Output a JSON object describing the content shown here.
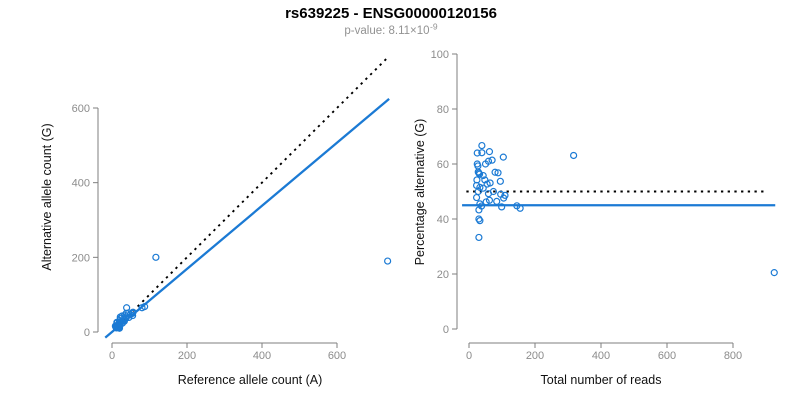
{
  "header": {
    "title": "rs639225 - ENSG00000120156",
    "subtitle_prefix": "p-value: 8.11×10",
    "subtitle_exponent": "-9"
  },
  "colors": {
    "point_blue": "#1b7ad4",
    "regression_blue": "#1b7ad4",
    "identity_black": "#000000",
    "axis_gray": "#7f7f7f",
    "tick_label_gray": "#8c8c8c"
  },
  "chart_data": [
    {
      "type": "scatter",
      "name": "allele-counts-plot",
      "xlabel": "Reference allele count (A)",
      "ylabel": "Alternative allele count (G)",
      "xticks": [
        0,
        200,
        400,
        600
      ],
      "yticks": [
        0,
        200,
        400,
        600
      ],
      "xlim": [
        -37,
        741
      ],
      "ylim": [
        -27,
        737
      ],
      "points": [
        [
          13,
          26
        ],
        [
          14,
          25
        ],
        [
          9,
          16
        ],
        [
          22,
          40
        ],
        [
          27,
          43
        ],
        [
          10,
          15
        ],
        [
          39,
          65
        ],
        [
          23,
          36
        ],
        [
          20,
          30
        ],
        [
          11,
          16
        ],
        [
          13,
          17
        ],
        [
          12,
          16
        ],
        [
          14,
          18
        ],
        [
          11,
          13
        ],
        [
          34,
          45
        ],
        [
          38,
          50
        ],
        [
          19,
          24
        ],
        [
          22,
          26
        ],
        [
          26,
          29
        ],
        [
          30,
          34
        ],
        [
          44,
          51
        ],
        [
          11,
          12
        ],
        [
          16,
          17
        ],
        [
          21,
          22
        ],
        [
          37,
          37
        ],
        [
          14,
          14
        ],
        [
          30,
          29
        ],
        [
          49,
          47
        ],
        [
          56,
          53
        ],
        [
          28,
          24
        ],
        [
          33,
          29
        ],
        [
          45,
          39
        ],
        [
          55,
          50
        ],
        [
          12,
          11
        ],
        [
          18,
          15
        ],
        [
          21,
          17
        ],
        [
          55,
          44
        ],
        [
          80,
          65
        ],
        [
          87,
          68
        ],
        [
          17,
          13
        ],
        [
          18,
          12
        ],
        [
          20,
          13
        ],
        [
          20,
          10
        ],
        [
          117,
          200
        ],
        [
          735,
          190
        ]
      ],
      "lines": [
        {
          "kind": "abline",
          "slope": 1,
          "intercept": 0,
          "dash": "dotted",
          "color": "#000000",
          "x1": 5,
          "x2": 731,
          "name": "identity-line"
        },
        {
          "kind": "abline",
          "slope": 0.845,
          "intercept": 0,
          "dash": "solid",
          "color": "#1b7ad4",
          "x1": -18,
          "x2": 739,
          "name": "regression-line"
        }
      ]
    },
    {
      "type": "scatter",
      "name": "percentage-alternative-plot",
      "xlabel": "Total number of reads",
      "ylabel": "Percentage alternative (G)",
      "xticks": [
        0,
        200,
        400,
        600,
        800
      ],
      "yticks": [
        0,
        20,
        40,
        60,
        80,
        100
      ],
      "xlim": [
        -37,
        962
      ],
      "ylim": [
        -4,
        104
      ],
      "points": [
        [
          39,
          66.7
        ],
        [
          39,
          64.1
        ],
        [
          25,
          64.0
        ],
        [
          62,
          64.5
        ],
        [
          70,
          61.4
        ],
        [
          25,
          60.0
        ],
        [
          104,
          62.5
        ],
        [
          59,
          61.0
        ],
        [
          50,
          60.0
        ],
        [
          27,
          59.3
        ],
        [
          30,
          56.7
        ],
        [
          28,
          57.1
        ],
        [
          32,
          56.3
        ],
        [
          24,
          54.2
        ],
        [
          79,
          57.0
        ],
        [
          88,
          56.8
        ],
        [
          43,
          55.8
        ],
        [
          48,
          54.2
        ],
        [
          55,
          52.7
        ],
        [
          64,
          53.1
        ],
        [
          95,
          53.7
        ],
        [
          23,
          52.2
        ],
        [
          33,
          51.5
        ],
        [
          43,
          51.2
        ],
        [
          74,
          50.0
        ],
        [
          28,
          50.0
        ],
        [
          59,
          49.2
        ],
        [
          96,
          49.0
        ],
        [
          109,
          48.6
        ],
        [
          52,
          46.2
        ],
        [
          62,
          46.8
        ],
        [
          84,
          46.4
        ],
        [
          105,
          47.6
        ],
        [
          23,
          47.8
        ],
        [
          33,
          45.5
        ],
        [
          38,
          44.7
        ],
        [
          99,
          44.4
        ],
        [
          145,
          44.8
        ],
        [
          155,
          43.9
        ],
        [
          30,
          43.3
        ],
        [
          30,
          40.0
        ],
        [
          33,
          39.4
        ],
        [
          30,
          33.3
        ],
        [
          317,
          63.1
        ],
        [
          925,
          20.5
        ]
      ],
      "lines": [
        {
          "kind": "hline",
          "y": 50,
          "dash": "dotted",
          "color": "#000000",
          "x1": -8,
          "x2": 905,
          "name": "expected-50-percent-line"
        },
        {
          "kind": "hline",
          "y": 45,
          "dash": "solid",
          "color": "#1b7ad4",
          "x1": -21,
          "x2": 928,
          "name": "mean-percentage-line"
        }
      ]
    }
  ]
}
